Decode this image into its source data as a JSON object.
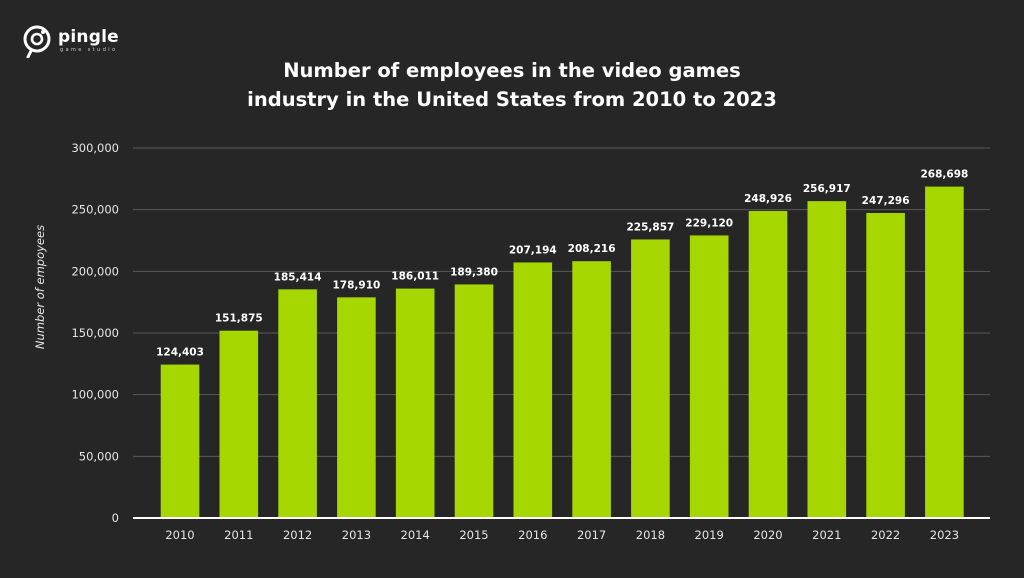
{
  "brand": {
    "name": "pingle",
    "tagline": "game studio"
  },
  "colors": {
    "background": "#262626",
    "bar": "#a6d700",
    "grid": "#5a5a5a",
    "axis": "#ffffff",
    "text": "#ffffff",
    "tick_text": "#e6e6e6"
  },
  "chart_data": {
    "type": "bar",
    "title_lines": [
      "Number of employees in the video games",
      "industry in the United States from 2010 to 2023"
    ],
    "xlabel": "",
    "ylabel": "Number of empoyees",
    "categories": [
      "2010",
      "2011",
      "2012",
      "2013",
      "2014",
      "2015",
      "2016",
      "2017",
      "2018",
      "2019",
      "2020",
      "2021",
      "2022",
      "2023"
    ],
    "values": [
      124403,
      151875,
      185414,
      178910,
      186011,
      189380,
      207194,
      208216,
      225857,
      229120,
      248926,
      256917,
      247296,
      268698
    ],
    "value_labels": [
      "124,403",
      "151,875",
      "185,414",
      "178,910",
      "186,011",
      "189,380",
      "207,194",
      "208,216",
      "225,857",
      "229,120",
      "248,926",
      "256,917",
      "247,296",
      "268,698"
    ],
    "ylim": [
      0,
      300000
    ],
    "yticks": [
      0,
      50000,
      100000,
      150000,
      200000,
      250000,
      300000
    ],
    "ytick_labels": [
      "0",
      "50,000",
      "100,000",
      "150,000",
      "200,000",
      "250,000",
      "300,000"
    ],
    "grid": true,
    "legend": "none"
  }
}
